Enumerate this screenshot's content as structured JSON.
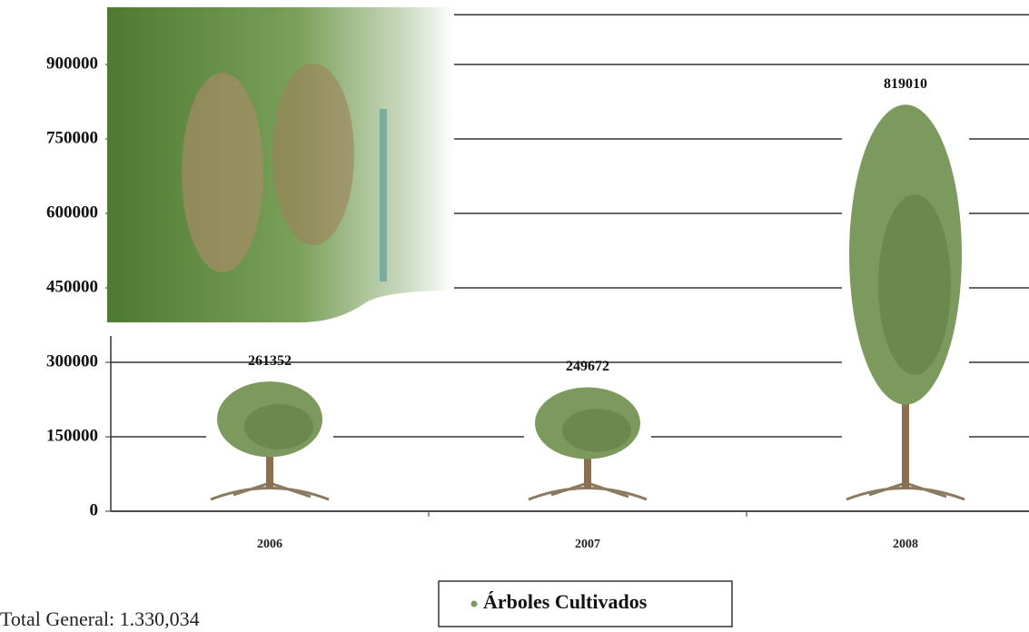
{
  "chart_data": {
    "type": "pictograph",
    "categories": [
      "2006",
      "2007",
      "2008"
    ],
    "series": [
      {
        "name": "Árboles Cultivados",
        "color": "#7d9a5e",
        "values": [
          261352,
          249672,
          819010
        ]
      }
    ],
    "ylim": [
      0,
      1000000
    ],
    "yticks": [
      0,
      150000,
      300000,
      450000,
      600000,
      750000,
      900000
    ],
    "grid": true,
    "annotation": "Total General: 1.330,034"
  }
}
